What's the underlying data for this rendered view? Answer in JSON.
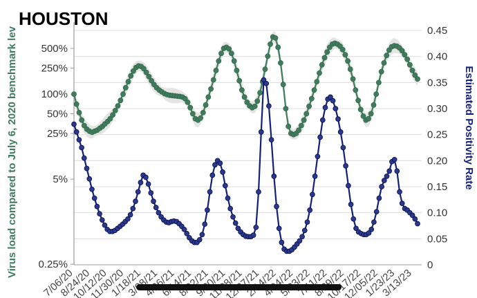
{
  "chart_data": {
    "type": "line",
    "title": "HOUSTON",
    "ylabel_left": "Virus load compared to July 6, 2020 benchmark lev",
    "ylabel_right": "Estimated Positivity Rate",
    "colors": {
      "virus": "#3e7c5c",
      "positivity": "#141f78",
      "band": "#e4e4e2",
      "grid": "#dcdcdc",
      "axis": "#9a9a9a",
      "redaction": "#111111"
    },
    "y_left": {
      "scale": "log",
      "ylim": [
        0.25,
        1000
      ],
      "ticks": [
        {
          "value": 500,
          "label": "500%"
        },
        {
          "value": 250,
          "label": "250%"
        },
        {
          "value": 100,
          "label": "100%"
        },
        {
          "value": 50,
          "label": "50%"
        },
        {
          "value": 25,
          "label": "25%"
        },
        {
          "value": 5,
          "label": "5%"
        },
        {
          "value": 0.25,
          "label": "0.25%"
        }
      ]
    },
    "y_right": {
      "scale": "linear",
      "ylim": [
        0,
        0.45
      ],
      "ticks": [
        {
          "value": 0.45,
          "label": "0.45"
        },
        {
          "value": 0.4,
          "label": "0.40"
        },
        {
          "value": 0.35,
          "label": "0.35"
        },
        {
          "value": 0.3,
          "label": "0.30"
        },
        {
          "value": 0.25,
          "label": "0.25"
        },
        {
          "value": 0.2,
          "label": "0.20"
        },
        {
          "value": 0.15,
          "label": "0.15"
        },
        {
          "value": 0.1,
          "label": "0.10"
        },
        {
          "value": 0.05,
          "label": "0.05"
        },
        {
          "value": 0,
          "label": "0"
        }
      ]
    },
    "x_ticks": [
      "7/06/20",
      "8/24/20",
      "10/12/20",
      "11/30/20",
      "1/18/21",
      "3/08/21",
      "4/26/21",
      "6/14/21",
      "8/02/21",
      "9/20/21",
      "11/08/21",
      "12/27/21",
      "2/14/22",
      "4/04/22",
      "5/23/22",
      "7/11/22",
      "8/29/22",
      "10/17/22",
      "12/05/22",
      "1/23/23",
      "3/13/23"
    ],
    "series": [
      {
        "name": "Virus load",
        "axis": "left",
        "values": [
          100,
          70,
          52,
          40,
          33,
          29,
          27,
          26,
          27,
          28,
          30,
          32,
          35,
          38,
          42,
          48,
          56,
          66,
          80,
          100,
          125,
          155,
          190,
          225,
          255,
          270,
          265,
          245,
          215,
          185,
          160,
          140,
          125,
          115,
          108,
          102,
          98,
          96,
          95,
          94,
          93,
          92,
          90,
          85,
          75,
          62,
          50,
          42,
          40,
          43,
          52,
          68,
          90,
          120,
          165,
          230,
          320,
          420,
          500,
          520,
          490,
          420,
          320,
          230,
          160,
          115,
          90,
          75,
          66,
          62,
          65,
          78,
          105,
          155,
          240,
          380,
          580,
          750,
          720,
          520,
          300,
          140,
          60,
          32,
          25,
          24,
          25,
          28,
          33,
          40,
          50,
          65,
          85,
          115,
          155,
          210,
          280,
          360,
          440,
          520,
          580,
          600,
          580,
          540,
          480,
          400,
          320,
          240,
          170,
          115,
          80,
          58,
          46,
          40,
          42,
          50,
          68,
          100,
          150,
          220,
          300,
          390,
          470,
          530,
          550,
          540,
          510,
          460,
          400,
          340,
          280,
          230,
          195,
          170
        ]
      },
      {
        "name": "Estimated Positivity Rate",
        "axis": "right",
        "values": [
          0.27,
          0.255,
          0.24,
          0.225,
          0.205,
          0.185,
          0.165,
          0.145,
          0.128,
          0.112,
          0.098,
          0.086,
          0.076,
          0.068,
          0.064,
          0.064,
          0.066,
          0.07,
          0.074,
          0.078,
          0.083,
          0.088,
          0.096,
          0.108,
          0.122,
          0.14,
          0.158,
          0.172,
          0.168,
          0.155,
          0.138,
          0.122,
          0.11,
          0.1,
          0.092,
          0.086,
          0.082,
          0.081,
          0.083,
          0.084,
          0.083,
          0.079,
          0.074,
          0.068,
          0.06,
          0.052,
          0.046,
          0.043,
          0.043,
          0.048,
          0.058,
          0.078,
          0.105,
          0.14,
          0.172,
          0.192,
          0.2,
          0.195,
          0.178,
          0.152,
          0.128,
          0.108,
          0.092,
          0.08,
          0.07,
          0.063,
          0.058,
          0.055,
          0.054,
          0.054,
          0.057,
          0.072,
          0.14,
          0.255,
          0.355,
          0.348,
          0.305,
          0.24,
          0.17,
          0.112,
          0.07,
          0.043,
          0.03,
          0.026,
          0.026,
          0.029,
          0.034,
          0.04,
          0.046,
          0.054,
          0.066,
          0.082,
          0.105,
          0.135,
          0.17,
          0.208,
          0.245,
          0.278,
          0.302,
          0.318,
          0.322,
          0.315,
          0.3,
          0.28,
          0.255,
          0.225,
          0.19,
          0.152,
          0.116,
          0.088,
          0.07,
          0.063,
          0.06,
          0.058,
          0.058,
          0.061,
          0.068,
          0.082,
          0.102,
          0.128,
          0.15,
          0.162,
          0.17,
          0.18,
          0.198,
          0.202,
          0.18,
          0.14,
          0.118,
          0.108,
          0.105,
          0.1,
          0.095,
          0.088,
          0.079
        ]
      }
    ]
  }
}
